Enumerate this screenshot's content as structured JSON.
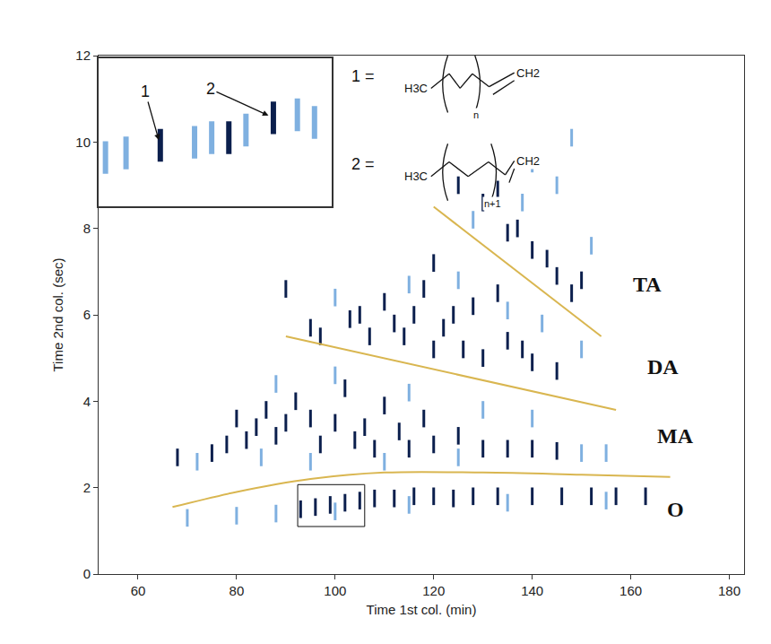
{
  "chart_data": {
    "type": "scatter",
    "xlabel": "Time 1st col. (min)",
    "ylabel": "Time 2nd col. (sec)",
    "xlim": [
      52,
      183
    ],
    "xticks": [
      60,
      80,
      100,
      120,
      140,
      160,
      180
    ],
    "ylim": [
      0,
      12
    ],
    "yticks": [
      0,
      2,
      4,
      6,
      8,
      10,
      12
    ],
    "grid": false,
    "series": [
      {
        "type": "scatter",
        "marker": "line-ns",
        "color": "#0b1f4d",
        "x": [
          93,
          96,
          99,
          102,
          105,
          108,
          112,
          116,
          120,
          124,
          128,
          133,
          140,
          146,
          152,
          157,
          163,
          68,
          75,
          78,
          80,
          82,
          84,
          86,
          88,
          90,
          92,
          95,
          97,
          100,
          102,
          104,
          106,
          108,
          110,
          113,
          115,
          118,
          120,
          125,
          130,
          135,
          140,
          145,
          90,
          95,
          97,
          103,
          105,
          107,
          110,
          112,
          114,
          116,
          118,
          120,
          120,
          122,
          124,
          126,
          128,
          130,
          133,
          135,
          138,
          140,
          145,
          125,
          130,
          133,
          135,
          137,
          140,
          143,
          145,
          148,
          150
        ],
        "y": [
          1.5,
          1.55,
          1.6,
          1.65,
          1.7,
          1.75,
          1.75,
          1.8,
          1.8,
          1.75,
          1.8,
          1.8,
          1.8,
          1.8,
          1.8,
          1.8,
          1.8,
          2.7,
          2.8,
          3.0,
          3.6,
          3.1,
          3.4,
          3.8,
          3.2,
          3.5,
          4.0,
          3.6,
          3.0,
          3.5,
          4.3,
          3.1,
          3.4,
          2.9,
          3.9,
          3.3,
          2.9,
          3.6,
          3.0,
          3.2,
          2.9,
          2.9,
          2.9,
          2.85,
          6.6,
          5.7,
          5.5,
          5.9,
          6.0,
          5.5,
          6.3,
          5.8,
          5.5,
          6.0,
          6.6,
          7.2,
          5.2,
          5.7,
          6.0,
          5.2,
          6.2,
          5.0,
          6.5,
          5.4,
          5.2,
          4.9,
          4.7,
          9.0,
          8.6,
          8.9,
          7.9,
          8.0,
          7.5,
          7.3,
          6.9,
          6.5,
          6.8
        ]
      },
      {
        "type": "scatter",
        "marker": "line-ns",
        "color": "#7fb0e0",
        "x": [
          70,
          80,
          88,
          100,
          115,
          135,
          155,
          72,
          85,
          95,
          110,
          125,
          150,
          155,
          88,
          100,
          115,
          130,
          140,
          100,
          115,
          125,
          135,
          142,
          150,
          128,
          138,
          145,
          148,
          152,
          140
        ],
        "y": [
          1.3,
          1.35,
          1.4,
          1.45,
          1.6,
          1.65,
          1.7,
          2.6,
          2.7,
          2.6,
          2.6,
          2.7,
          2.8,
          2.8,
          4.4,
          4.6,
          4.2,
          3.8,
          3.6,
          6.4,
          6.7,
          6.8,
          6.1,
          5.8,
          5.2,
          8.2,
          8.6,
          9.0,
          10.1,
          7.6,
          9.5
        ]
      },
      {
        "type": "line",
        "line_style": "solid",
        "color": "#d9b650",
        "x": [
          67,
          80,
          95,
          110,
          130,
          150,
          168
        ],
        "y": [
          1.55,
          1.9,
          2.2,
          2.35,
          2.35,
          2.3,
          2.25
        ]
      },
      {
        "type": "line",
        "line_style": "solid",
        "color": "#d9b650",
        "x": [
          90,
          157
        ],
        "y": [
          5.5,
          3.8
        ]
      },
      {
        "type": "line",
        "line_style": "solid",
        "color": "#d9b650",
        "x": [
          120,
          154
        ],
        "y": [
          8.5,
          5.5
        ]
      }
    ],
    "annotations": [
      {
        "text": "TA",
        "x": 160,
        "y": 6.7
      },
      {
        "text": "DA",
        "x": 163,
        "y": 4.8
      },
      {
        "text": "MA",
        "x": 165,
        "y": 3.2
      },
      {
        "text": "O",
        "x": 167,
        "y": 1.5
      }
    ],
    "inset": {
      "xlim": [
        92.4,
        106
      ],
      "ylim": [
        1.1,
        2.07
      ],
      "series": [
        {
          "type": "scatter",
          "marker": "line-ns",
          "color": "#0b1f4d",
          "x": [
            96,
            100,
            102.6
          ],
          "y": [
            1.5,
            1.55,
            1.68
          ]
        },
        {
          "type": "scatter",
          "marker": "line-ns",
          "color": "#7fb0e0",
          "x": [
            92.8,
            94,
            98,
            99,
            101,
            104,
            105
          ],
          "y": [
            1.42,
            1.45,
            1.52,
            1.55,
            1.6,
            1.7,
            1.65
          ]
        }
      ],
      "labels": [
        {
          "text": "1",
          "x": 96,
          "y": 1.5
        },
        {
          "text": "2",
          "x": 102.6,
          "y": 1.68
        }
      ]
    },
    "formulas": [
      {
        "label": "1 =",
        "left": "H3C",
        "right": "CH2",
        "index": "n"
      },
      {
        "label": "2 =",
        "left": "H3C",
        "right": "CH2",
        "index": "n+1"
      }
    ]
  }
}
